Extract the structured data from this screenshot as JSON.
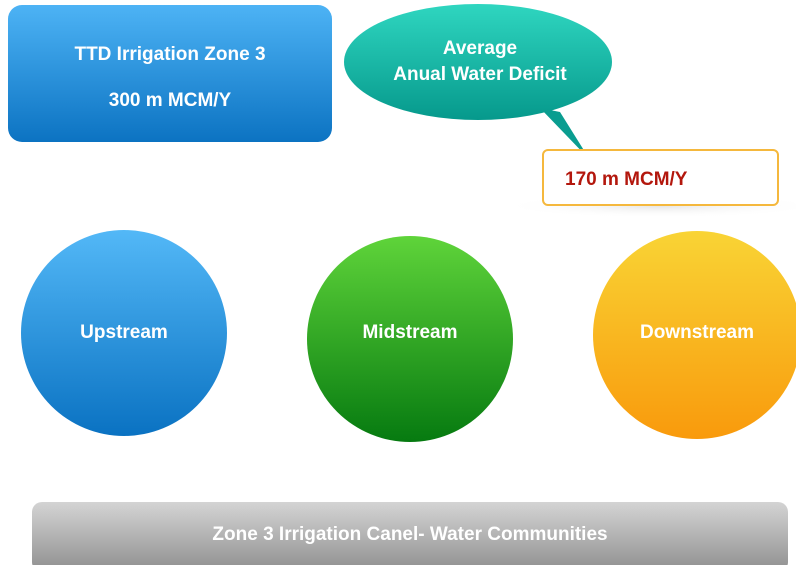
{
  "zone_box": {
    "title": "TTD Irrigation Zone 3",
    "value": "300 m MCM/Y"
  },
  "deficit_bubble": {
    "lines": [
      "Average",
      "Anual Water Deficit"
    ]
  },
  "deficit_box": {
    "value": "170 m MCM/Y"
  },
  "zones": [
    "Upstream",
    "Midstream",
    "Downstream"
  ],
  "canal": {
    "label": "Zone 3 Irrigation Canel- Water Communities"
  }
}
